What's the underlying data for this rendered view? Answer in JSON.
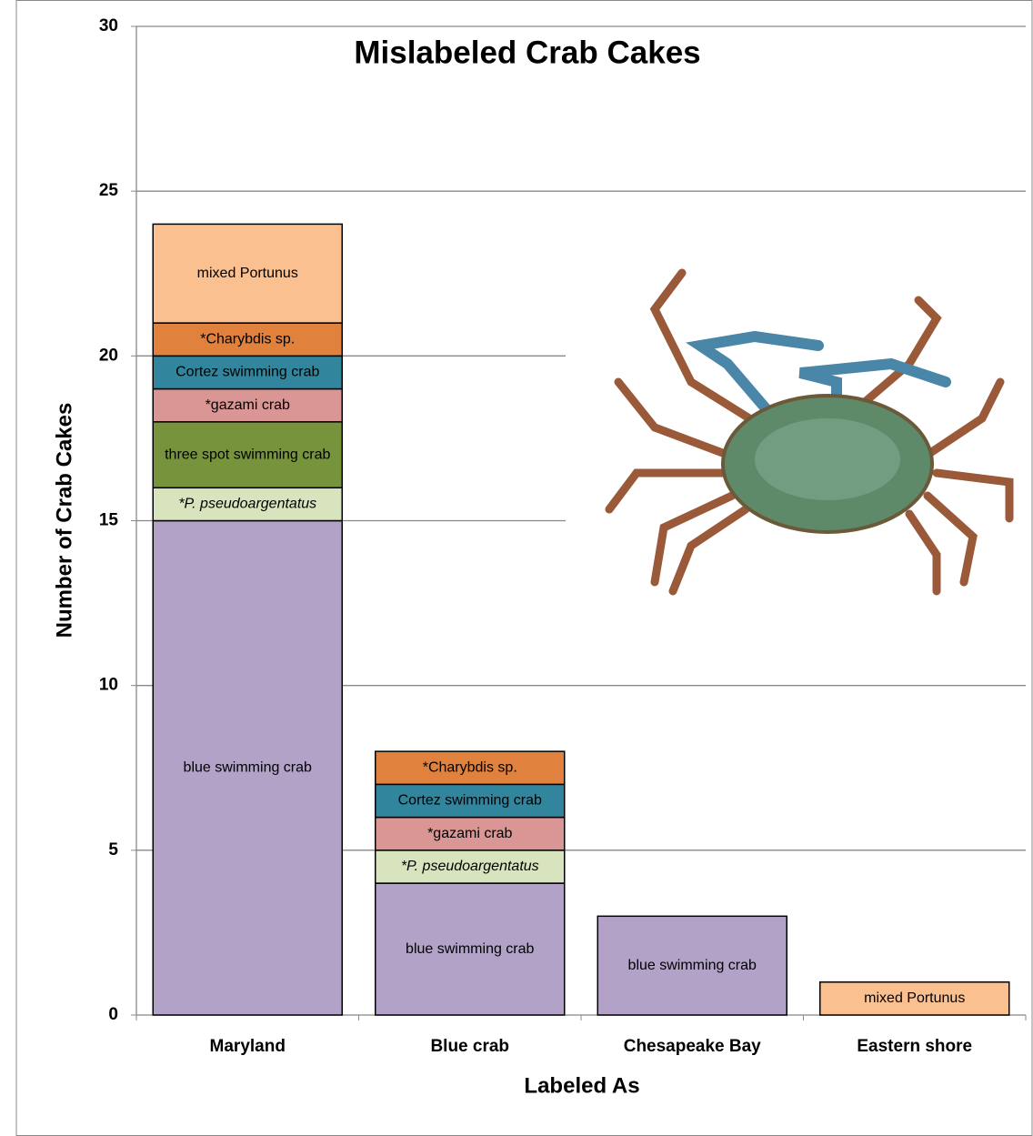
{
  "chart_data": {
    "type": "stacked_bar",
    "title": "Mislabeled Crab Cakes",
    "x_label": "Labeled As",
    "y_label": "Number of Crab Cakes",
    "categories": [
      "Maryland",
      "Blue crab",
      "Chesapeake Bay",
      "Eastern shore"
    ],
    "ylim": [
      0,
      30
    ],
    "yticks": [
      0,
      5,
      10,
      15,
      20,
      25,
      30
    ],
    "grid": true,
    "series": [
      {
        "name": "blue swimming crab",
        "color": "#b3a2c7",
        "values": [
          15,
          4,
          3,
          null
        ]
      },
      {
        "name": "*P. pseudoargentatus",
        "color": "#d7e4bd",
        "italic": true,
        "values": [
          1,
          1,
          null,
          null
        ]
      },
      {
        "name": "three spot swimming crab",
        "color": "#77933c",
        "values": [
          2,
          null,
          null,
          null
        ]
      },
      {
        "name": "*gazami crab",
        "color": "#d99694",
        "values": [
          1,
          1,
          null,
          null
        ]
      },
      {
        "name": "Cortez swimming crab",
        "color": "#31859c",
        "values": [
          1,
          1,
          null,
          null
        ]
      },
      {
        "name": "*Charybdis sp.",
        "color": "#e0823d",
        "values": [
          1,
          1,
          null,
          null
        ]
      },
      {
        "name": "mixed Portunus",
        "color": "#fac090",
        "values": [
          3,
          null,
          null,
          1
        ]
      }
    ]
  }
}
